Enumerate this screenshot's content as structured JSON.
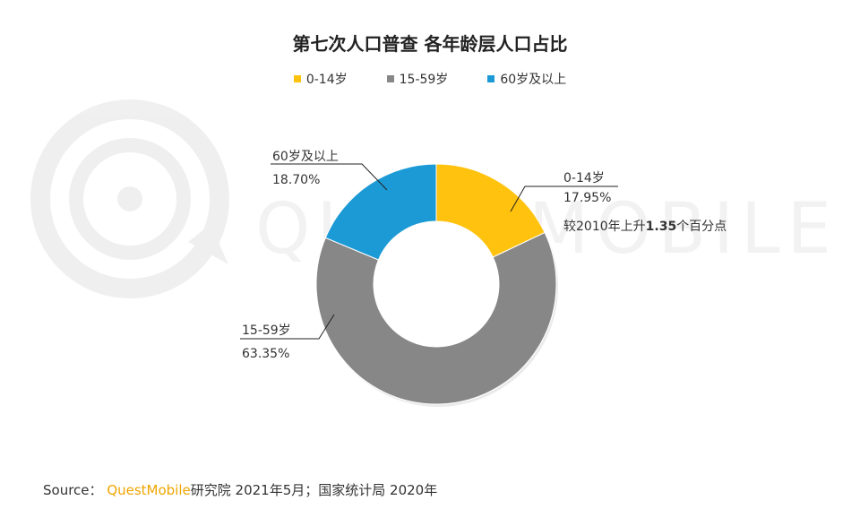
{
  "chart_data": {
    "type": "pie",
    "variant": "donut",
    "title": "第七次人口普查 各年龄层人口占比",
    "legend_position": "top",
    "categories": [
      "0-14岁",
      "15-59岁",
      "60岁及以上"
    ],
    "values": [
      17.95,
      63.35,
      18.7
    ],
    "value_labels": [
      "17.95%",
      "63.35%",
      "18.70%"
    ],
    "colors": [
      "#ffc20e",
      "#878787",
      "#1c9ad6"
    ],
    "annotations": [
      {
        "category": "0-14岁",
        "text_before": "较2010年上升",
        "bold": "1.35",
        "text_after": "个百分点"
      }
    ]
  },
  "watermark": {
    "text": "QUESTMOBILE"
  },
  "source": {
    "prefix": "Source：",
    "brand": "QuestMobile",
    "suffix": "研究院 2021年5月；国家统计局 2020年"
  }
}
